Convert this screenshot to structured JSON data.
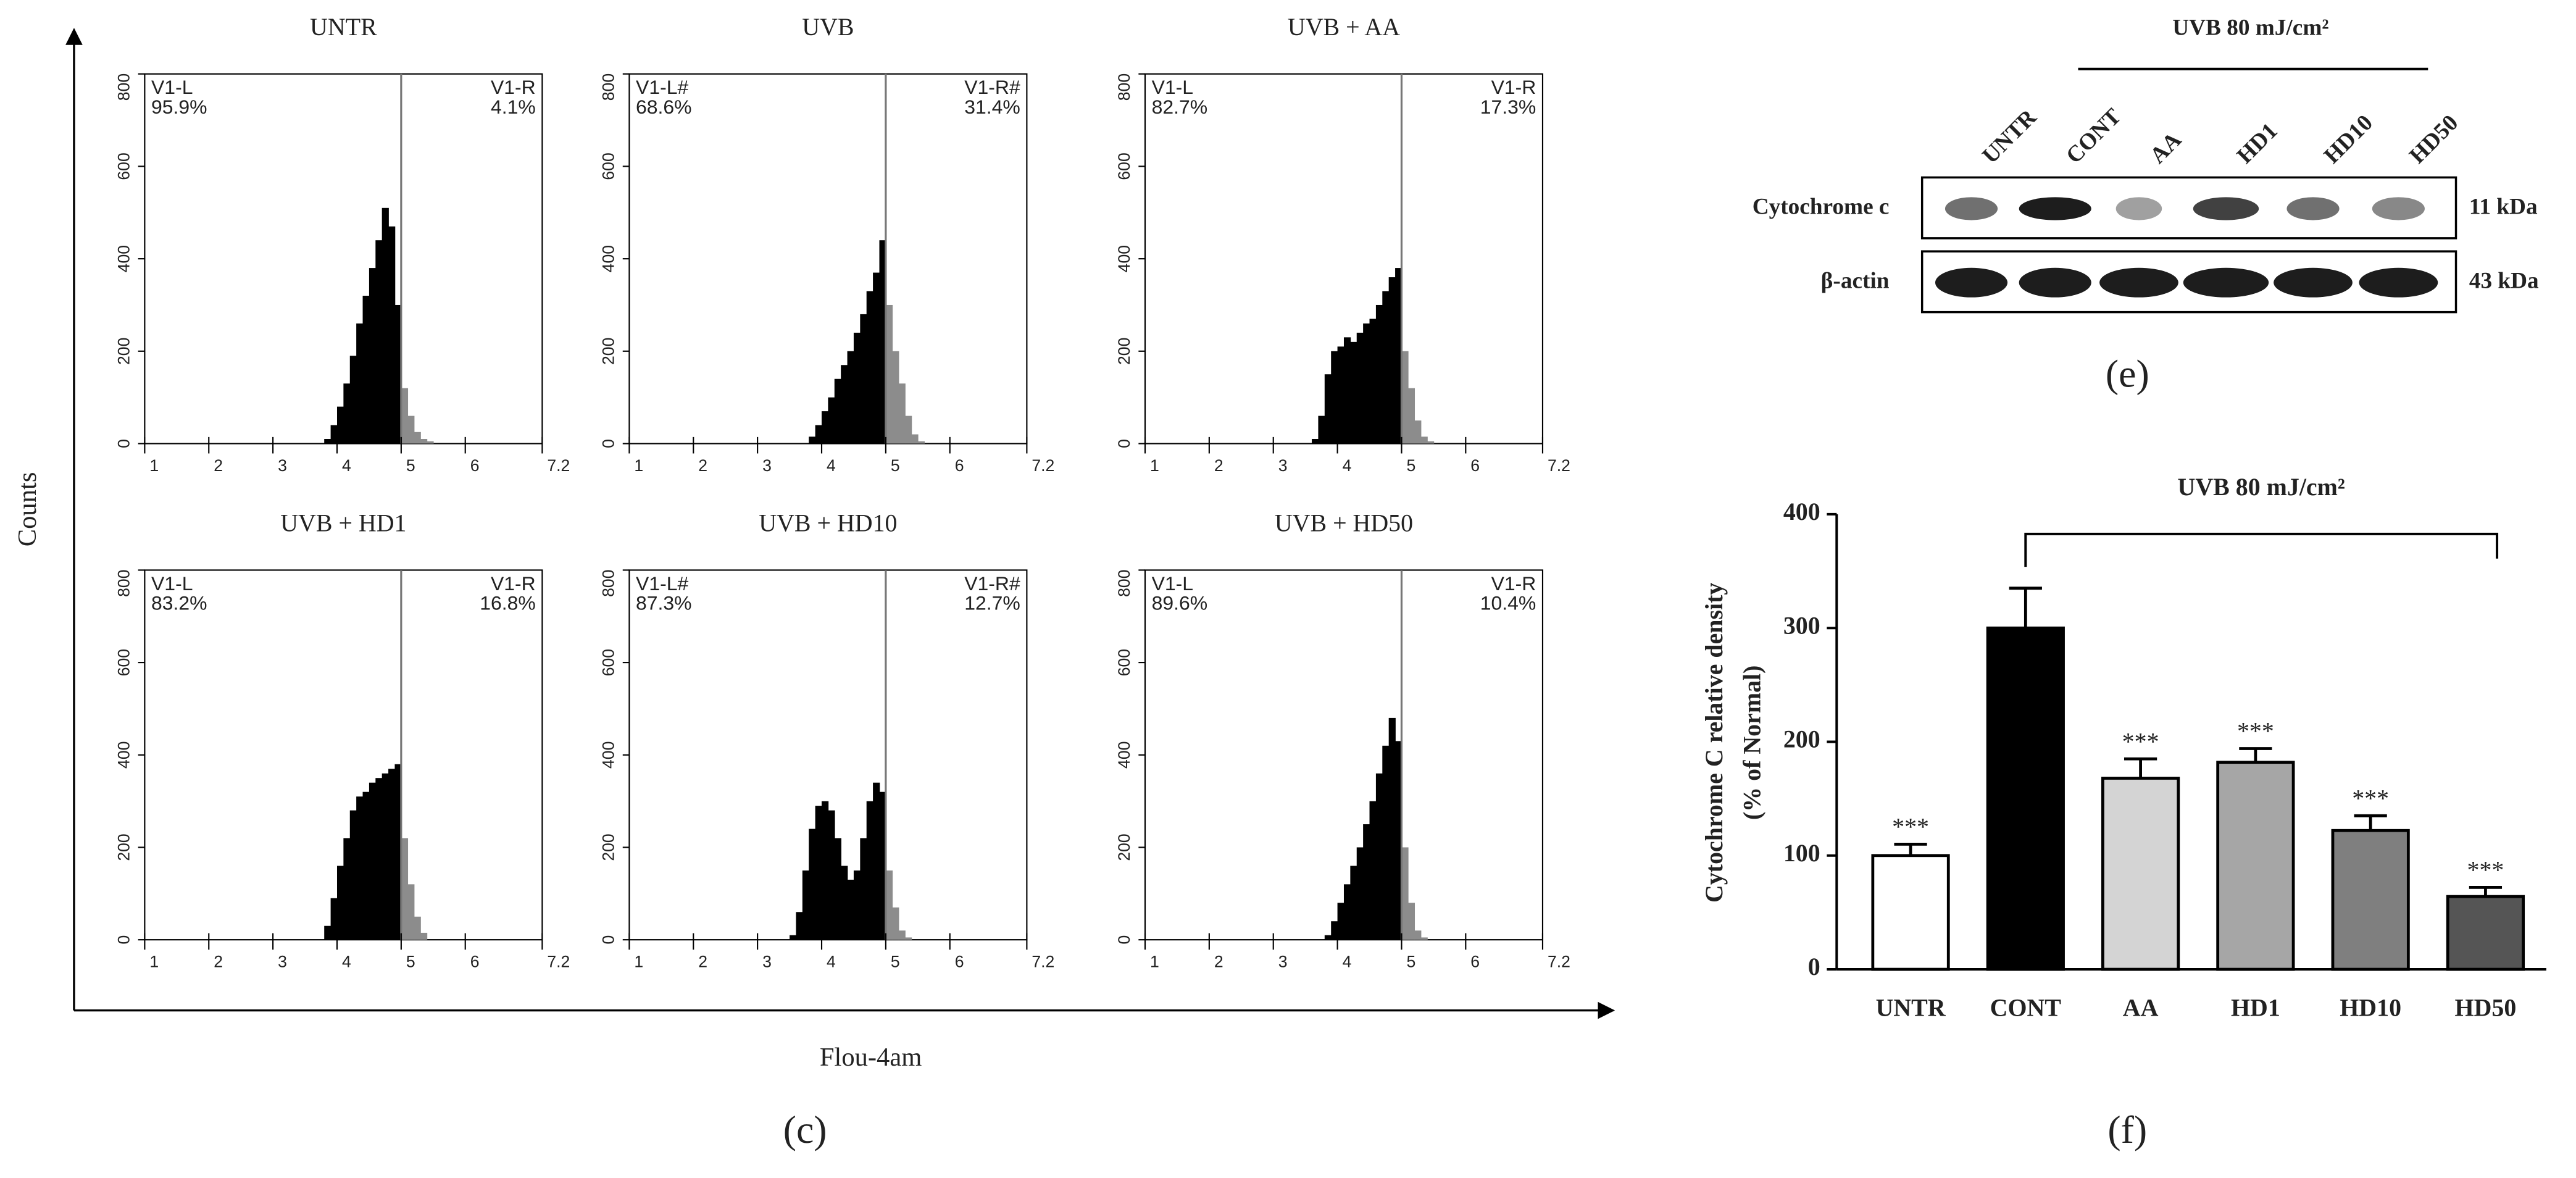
{
  "figure_c": {
    "y_label": "Counts",
    "x_label": "Flou-4am",
    "panel_label": "(c)"
  },
  "figure_e": {
    "header": "UVB 80 mJ/cm²",
    "lanes": [
      "UNTR",
      "CONT",
      "AA",
      "HD1",
      "HD10",
      "HD50"
    ],
    "rows": [
      {
        "name": "Cytochrome c",
        "size": "11 kDa"
      },
      {
        "name": "β-actin",
        "size": "43 kDa"
      }
    ],
    "panel_label": "(e)"
  },
  "chart_data": [
    {
      "type": "histogram",
      "title": "UNTR",
      "bins": [
        3.5,
        3.6,
        3.7,
        3.8,
        3.9,
        4.0,
        4.1,
        4.2,
        4.3,
        4.4,
        4.5,
        4.6,
        4.7,
        4.8,
        4.9,
        5.0,
        5.1,
        5.2,
        5.3,
        5.4,
        5.5,
        5.6,
        5.7
      ],
      "counts": [
        0,
        0,
        0,
        10,
        40,
        80,
        130,
        190,
        260,
        320,
        380,
        440,
        510,
        470,
        300,
        120,
        60,
        25,
        10,
        5,
        0,
        0
      ],
      "xlim": [
        1,
        7.2
      ],
      "xticks": [
        1,
        2,
        3,
        4,
        5,
        6,
        7.2
      ],
      "ylim": [
        0,
        800
      ],
      "yticks": [
        0,
        200,
        400,
        600,
        800
      ],
      "gate": 5,
      "colors": {
        "below": "#000000",
        "above": "#8c8c8c"
      },
      "regions": [
        {
          "name": "V1-L",
          "percent": "95.9%"
        },
        {
          "name": "V1-R",
          "percent": "4.1%"
        }
      ]
    },
    {
      "type": "histogram",
      "title": "UVB",
      "bins": [
        3.5,
        3.6,
        3.7,
        3.8,
        3.9,
        4.0,
        4.1,
        4.2,
        4.3,
        4.4,
        4.5,
        4.6,
        4.7,
        4.8,
        4.9,
        5.0,
        5.1,
        5.2,
        5.3,
        5.4,
        5.5,
        5.6,
        5.7
      ],
      "counts": [
        0,
        0,
        0,
        15,
        40,
        70,
        100,
        140,
        170,
        200,
        240,
        280,
        330,
        370,
        440,
        300,
        200,
        130,
        60,
        20,
        5,
        0
      ],
      "xlim": [
        1,
        7.2
      ],
      "xticks": [
        1,
        2,
        3,
        4,
        5,
        6,
        7.2
      ],
      "ylim": [
        0,
        800
      ],
      "yticks": [
        0,
        200,
        400,
        600,
        800
      ],
      "gate": 5,
      "colors": {
        "below": "#000000",
        "above": "#8c8c8c"
      },
      "regions": [
        {
          "name": "V1-L#",
          "percent": "68.6%"
        },
        {
          "name": "V1-R#",
          "percent": "31.4%"
        }
      ]
    },
    {
      "type": "histogram",
      "title": "UVB + AA",
      "bins": [
        3.5,
        3.6,
        3.7,
        3.8,
        3.9,
        4.0,
        4.1,
        4.2,
        4.3,
        4.4,
        4.5,
        4.6,
        4.7,
        4.8,
        4.9,
        5.0,
        5.1,
        5.2,
        5.3,
        5.4,
        5.5,
        5.6,
        5.7
      ],
      "counts": [
        0,
        10,
        60,
        150,
        200,
        210,
        230,
        220,
        240,
        260,
        270,
        300,
        330,
        360,
        380,
        200,
        120,
        50,
        15,
        5,
        0,
        0
      ],
      "xlim": [
        1,
        7.2
      ],
      "xticks": [
        1,
        2,
        3,
        4,
        5,
        6,
        7.2
      ],
      "ylim": [
        0,
        800
      ],
      "yticks": [
        0,
        200,
        400,
        600,
        800
      ],
      "gate": 5,
      "colors": {
        "below": "#000000",
        "above": "#8c8c8c"
      },
      "regions": [
        {
          "name": "V1-L",
          "percent": "82.7%"
        },
        {
          "name": "V1-R",
          "percent": "17.3%"
        }
      ]
    },
    {
      "type": "histogram",
      "title": "UVB + HD1",
      "bins": [
        3.5,
        3.6,
        3.7,
        3.8,
        3.9,
        4.0,
        4.1,
        4.2,
        4.3,
        4.4,
        4.5,
        4.6,
        4.7,
        4.8,
        4.9,
        5.0,
        5.1,
        5.2,
        5.3,
        5.4,
        5.5,
        5.6,
        5.7
      ],
      "counts": [
        0,
        0,
        0,
        30,
        90,
        160,
        220,
        280,
        310,
        320,
        340,
        350,
        360,
        370,
        380,
        220,
        120,
        50,
        15,
        0,
        0,
        0
      ],
      "xlim": [
        1,
        7.2
      ],
      "xticks": [
        1,
        2,
        3,
        4,
        5,
        6,
        7.2
      ],
      "ylim": [
        0,
        800
      ],
      "yticks": [
        0,
        200,
        400,
        600,
        800
      ],
      "gate": 5,
      "colors": {
        "below": "#000000",
        "above": "#8c8c8c"
      },
      "regions": [
        {
          "name": "V1-L",
          "percent": "83.2%"
        },
        {
          "name": "V1-R",
          "percent": "16.8%"
        }
      ]
    },
    {
      "type": "histogram",
      "title": "UVB + HD10",
      "bins": [
        3.5,
        3.6,
        3.7,
        3.8,
        3.9,
        4.0,
        4.1,
        4.2,
        4.3,
        4.4,
        4.5,
        4.6,
        4.7,
        4.8,
        4.9,
        5.0,
        5.1,
        5.2,
        5.3,
        5.4,
        5.5,
        5.6,
        5.7
      ],
      "counts": [
        10,
        60,
        150,
        240,
        290,
        300,
        280,
        220,
        160,
        130,
        150,
        220,
        300,
        340,
        320,
        150,
        70,
        20,
        5,
        0,
        0,
        0
      ],
      "xlim": [
        1,
        7.2
      ],
      "xticks": [
        1,
        2,
        3,
        4,
        5,
        6,
        7.2
      ],
      "ylim": [
        0,
        800
      ],
      "yticks": [
        0,
        200,
        400,
        600,
        800
      ],
      "gate": 5,
      "colors": {
        "below": "#000000",
        "above": "#8c8c8c"
      },
      "regions": [
        {
          "name": "V1-L#",
          "percent": "87.3%"
        },
        {
          "name": "V1-R#",
          "percent": "12.7%"
        }
      ]
    },
    {
      "type": "histogram",
      "title": "UVB + HD50",
      "bins": [
        3.5,
        3.6,
        3.7,
        3.8,
        3.9,
        4.0,
        4.1,
        4.2,
        4.3,
        4.4,
        4.5,
        4.6,
        4.7,
        4.8,
        4.9,
        5.0,
        5.1,
        5.2,
        5.3,
        5.4,
        5.5,
        5.6,
        5.7
      ],
      "counts": [
        0,
        0,
        0,
        10,
        40,
        80,
        120,
        160,
        200,
        250,
        300,
        360,
        420,
        480,
        430,
        200,
        80,
        20,
        5,
        0,
        0,
        0
      ],
      "xlim": [
        1,
        7.2
      ],
      "xticks": [
        1,
        2,
        3,
        4,
        5,
        6,
        7.2
      ],
      "ylim": [
        0,
        800
      ],
      "yticks": [
        0,
        200,
        400,
        600,
        800
      ],
      "gate": 5,
      "colors": {
        "below": "#000000",
        "above": "#8c8c8c"
      },
      "regions": [
        {
          "name": "V1-L",
          "percent": "89.6%"
        },
        {
          "name": "V1-R",
          "percent": "10.4%"
        }
      ]
    },
    {
      "type": "bar",
      "y_label": "Cytochrome C relative density",
      "y_label_2": "(% of Normal)",
      "categories": [
        "UNTR",
        "CONT",
        "AA",
        "HD1",
        "HD10",
        "HD50"
      ],
      "values": [
        100,
        300,
        168,
        182,
        122,
        64
      ],
      "errors": [
        10,
        35,
        17,
        12,
        13,
        8
      ],
      "colors": [
        "#ffffff",
        "#000000",
        "#d4d4d4",
        "#a6a6a6",
        "#7f7f7f",
        "#555555"
      ],
      "significance": [
        "***",
        null,
        "***",
        "***",
        "***",
        "***"
      ],
      "bracket_label": "UVB 80 mJ/cm²",
      "ylim": [
        0,
        400
      ],
      "yticks": [
        0,
        100,
        200,
        300,
        400
      ],
      "panel_label": "(f)"
    }
  ]
}
